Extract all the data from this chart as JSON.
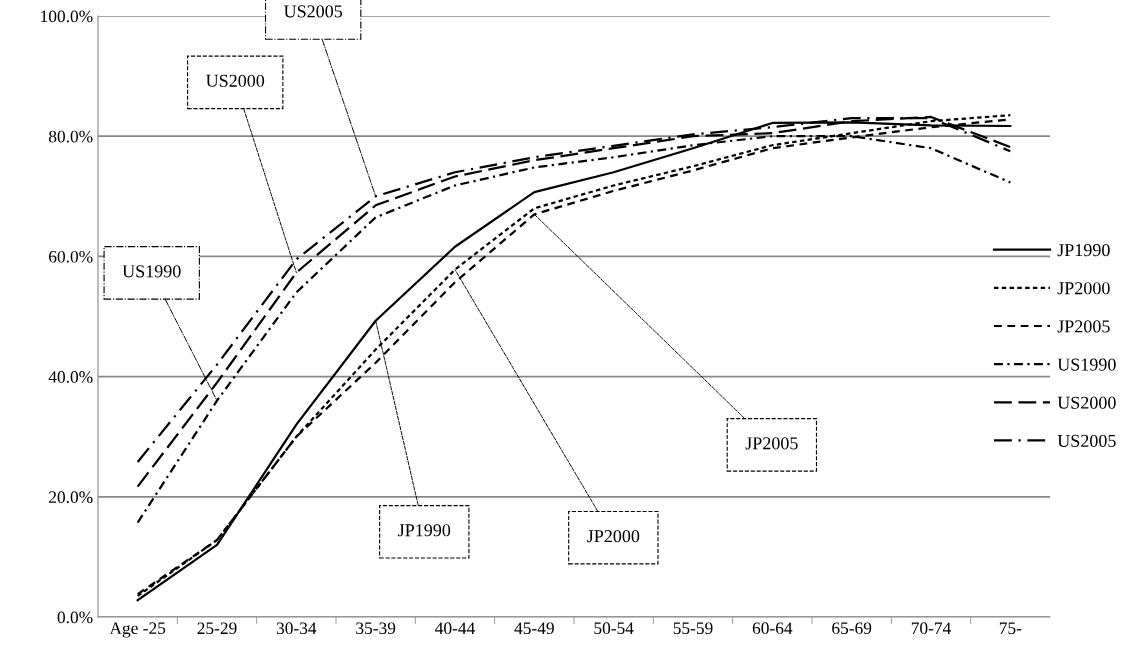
{
  "chart_data": {
    "type": "line",
    "categories": [
      "Age -25",
      "25-29",
      "30-34",
      "35-39",
      "40-44",
      "45-49",
      "50-54",
      "55-59",
      "60-64",
      "65-69",
      "70-74",
      "75-"
    ],
    "series": [
      {
        "name": "JP1990",
        "color": "#000000",
        "line_style": "solid",
        "values": [
          2.8,
          12,
          32,
          49.3,
          61.6,
          70.7,
          74,
          78,
          82.2,
          82.3,
          81.8,
          81.7
        ]
      },
      {
        "name": "JP2000",
        "color": "#000000",
        "line_style": "dotted",
        "values": [
          3.5,
          12.8,
          30,
          44.5,
          57.8,
          68,
          71.8,
          75,
          78.5,
          80.5,
          82.5,
          83.5
        ]
      },
      {
        "name": "JP2005",
        "color": "#000000",
        "line_style": "dashed",
        "values": [
          3.8,
          12.8,
          30,
          42.3,
          55.7,
          67,
          70.9,
          74.3,
          78,
          79.8,
          81.5,
          82.8
        ]
      },
      {
        "name": "US1990",
        "color": "#000000",
        "line_style": "dashdotdot",
        "values": [
          15.7,
          36,
          54,
          66.5,
          71.8,
          74.8,
          76.5,
          78.5,
          80,
          80,
          78,
          72.3
        ]
      },
      {
        "name": "US2000",
        "color": "#000000",
        "line_style": "longdash",
        "values": [
          21.7,
          39,
          57.3,
          68.5,
          73.3,
          76,
          78,
          80,
          80.5,
          82.5,
          83.2,
          78.2
        ]
      },
      {
        "name": "US2005",
        "color": "#000000",
        "line_style": "longdashdot",
        "values": [
          25.8,
          42,
          59.5,
          70,
          74,
          76.5,
          78.4,
          80.3,
          81.5,
          83,
          83,
          77.5
        ]
      }
    ],
    "ylim": [
      0,
      100
    ],
    "yticks": [
      {
        "value": 0,
        "label": "0.0%"
      },
      {
        "value": 20,
        "label": "20.0%"
      },
      {
        "value": 40,
        "label": "40.0%"
      },
      {
        "value": 60,
        "label": "60.0%"
      },
      {
        "value": 80,
        "label": "80.0%"
      },
      {
        "value": 100,
        "label": "100.0%"
      }
    ],
    "grid": "y",
    "legend": "right",
    "marker": "none",
    "annotations": [
      {
        "text": "US2005",
        "x": "35-39",
        "y": 70
      },
      {
        "text": "US2000",
        "x": "30-34",
        "y": 57.3
      },
      {
        "text": "US1990",
        "x": "25-29",
        "y": 36
      },
      {
        "text": "JP1990",
        "x": "35-39",
        "y": 49.3
      },
      {
        "text": "JP2000",
        "x": "40-44",
        "y": 57.8
      },
      {
        "text": "JP2005",
        "x": "45-49",
        "y": 67
      }
    ]
  }
}
